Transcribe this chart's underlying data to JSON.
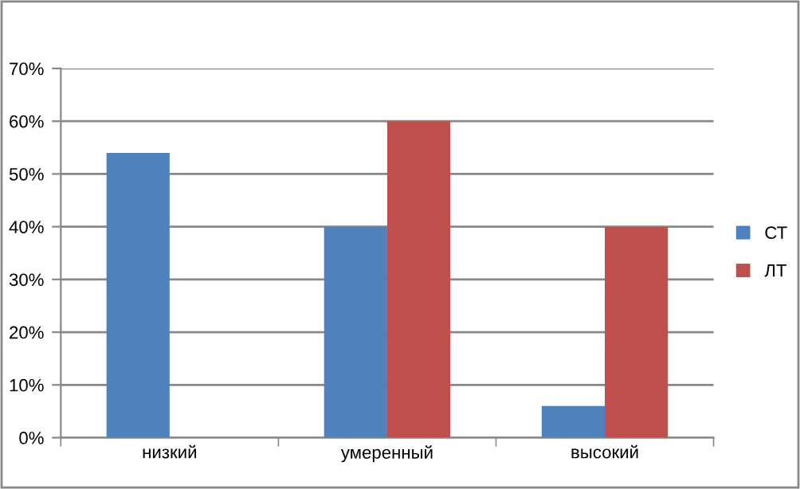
{
  "chart_data": {
    "type": "bar",
    "categories": [
      "низкий",
      "умеренный",
      "высокий"
    ],
    "series": [
      {
        "name": "СТ",
        "color": "#4f81bd",
        "values": [
          54,
          40,
          6
        ]
      },
      {
        "name": "ЛТ",
        "color": "#c0504d",
        "values": [
          null,
          60,
          40
        ]
      }
    ],
    "ylim": [
      0,
      70
    ],
    "yticks": [
      {
        "value": 0,
        "label": "0%"
      },
      {
        "value": 10,
        "label": "10%"
      },
      {
        "value": 20,
        "label": "20%"
      },
      {
        "value": 30,
        "label": "30%"
      },
      {
        "value": 40,
        "label": "40%"
      },
      {
        "value": 50,
        "label": "50%"
      },
      {
        "value": 60,
        "label": "60%"
      },
      {
        "value": 70,
        "label": "70%"
      }
    ],
    "grid": "y",
    "legend": "right"
  }
}
